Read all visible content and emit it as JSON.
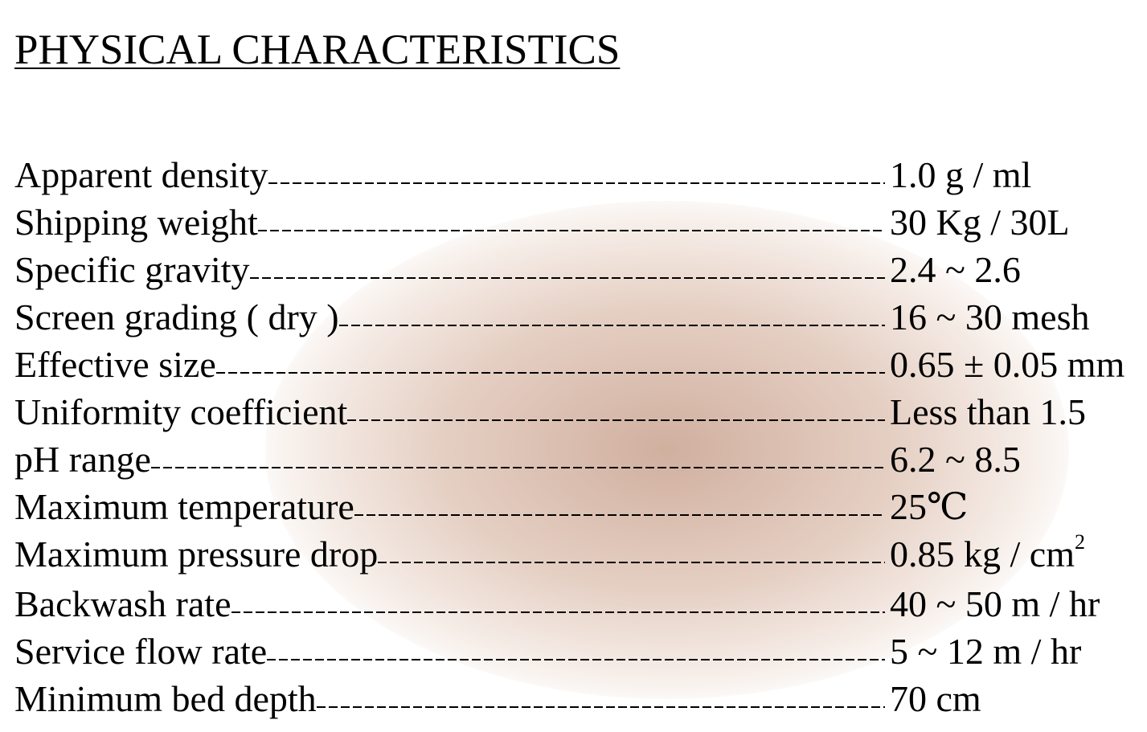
{
  "header": {
    "title": "PHYSICAL CHARACTERISTICS"
  },
  "rows": [
    {
      "label": "Apparent density",
      "value": "1.0 g / ml"
    },
    {
      "label": "Shipping weight",
      "value": "30 Kg / 30L"
    },
    {
      "label": "Specific gravity",
      "value": "2.4 ~ 2.6"
    },
    {
      "label": "Screen grading ( dry )",
      "value": "16 ~ 30 mesh"
    },
    {
      "label": "Effective size",
      "value": "0.65 ± 0.05 mm"
    },
    {
      "label": "Uniformity coefficient",
      "value": "Less than 1.5"
    },
    {
      "label": "pH range",
      "value": "6.2 ~ 8.5"
    },
    {
      "label": "Maximum temperature",
      "value": "25℃"
    },
    {
      "label": "Maximum pressure drop",
      "value": "0.85 kg / cm",
      "superscript": "2"
    },
    {
      "label": "Backwash rate",
      "value": "40 ~ 50 m / hr"
    },
    {
      "label": "Service flow rate",
      "value": "5 ~ 12 m / hr"
    },
    {
      "label": "Minimum bed depth",
      "value": "70 cm"
    }
  ]
}
